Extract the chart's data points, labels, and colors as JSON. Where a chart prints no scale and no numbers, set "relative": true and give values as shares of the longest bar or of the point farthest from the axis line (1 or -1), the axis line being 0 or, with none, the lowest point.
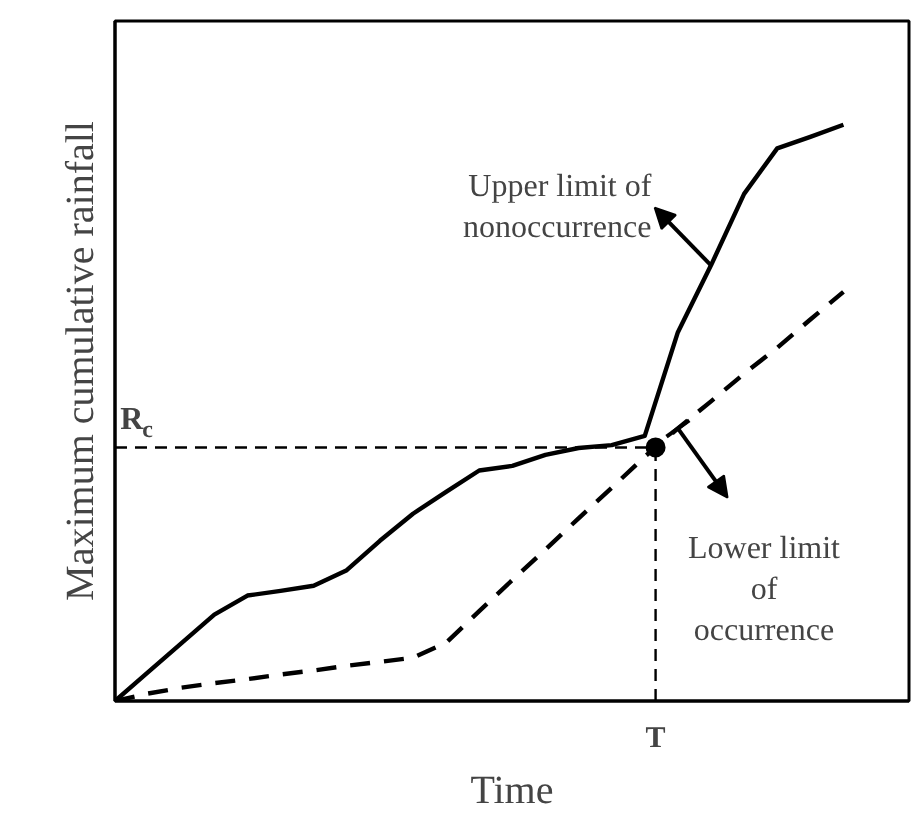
{
  "chart_data": {
    "type": "line",
    "relative": true,
    "xlabel": "Time",
    "ylabel": "Maximum cumulative rainfall",
    "categories": [
      null,
      null,
      null,
      null,
      null,
      null,
      null,
      null,
      null,
      null,
      null,
      null,
      null,
      null,
      null,
      null,
      null,
      null,
      null,
      null,
      null,
      null,
      null
    ],
    "series": [
      {
        "color": "#000000",
        "line_style": "solid",
        "values": [
          0,
          0.05,
          0.1,
          0.15,
          0.183,
          0.191,
          0.2,
          0.227,
          0.278,
          0.325,
          0.363,
          0.4,
          0.408,
          0.427,
          0.439,
          0.444,
          0.46,
          0.64,
          0.756,
          0.88,
          0.959,
          0.979,
          1.0
        ]
      },
      {
        "color": "#000000",
        "line_style": "dashed",
        "values": [
          0,
          0.013,
          0.023,
          0.031,
          0.038,
          0.046,
          0.053,
          0.061,
          0.068,
          0.075,
          0.101,
          0.156,
          0.21,
          0.263,
          0.317,
          0.37,
          0.424,
          0.473,
          0.52,
          0.568,
          0.613,
          0.662,
          0.71
        ]
      }
    ],
    "ref_lines": [
      {
        "axis": "y",
        "value": 0.44,
        "label": "R$_{c}$",
        "line_style": "dashed"
      }
    ],
    "annotations": [
      "T",
      "Upper limit of\nnonoccurrence",
      "Lower limit\nof\noccurrence"
    ]
  }
}
